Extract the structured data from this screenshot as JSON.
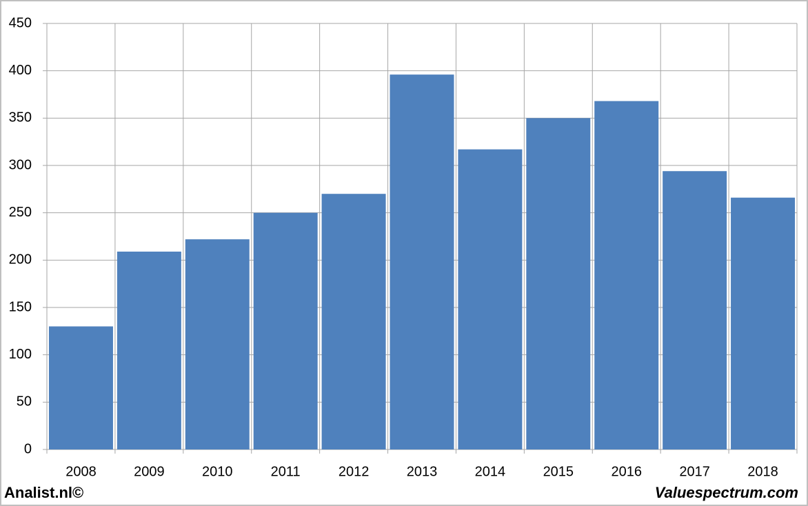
{
  "chart_data": {
    "type": "bar",
    "categories": [
      "2008",
      "2009",
      "2010",
      "2011",
      "2012",
      "2013",
      "2014",
      "2015",
      "2016",
      "2017",
      "2018"
    ],
    "values": [
      130,
      209,
      222,
      250,
      270,
      396,
      317,
      350,
      368,
      294,
      266
    ],
    "color": "#4f81bd",
    "ylim": [
      0,
      450
    ],
    "yticks": [
      0,
      50,
      100,
      150,
      200,
      250,
      300,
      350,
      400,
      450
    ],
    "grid": true
  },
  "footer": {
    "left": "Analist.nl©",
    "right": "Valuespectrum.com"
  }
}
